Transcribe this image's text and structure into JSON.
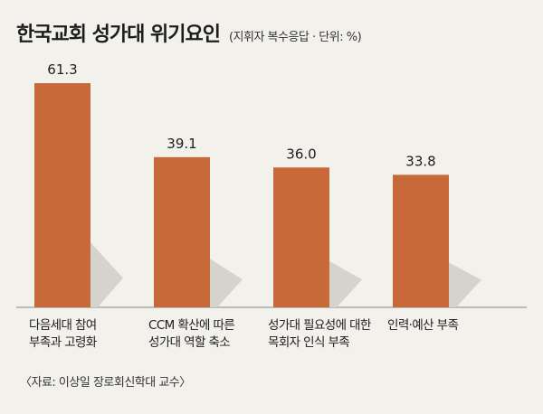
{
  "title": "한국교회 성가대 위기요인",
  "subtitle": "(지휘자 복수응답 · 단위: %)",
  "source": "〈자료: 이상일 장로회신학대 교수〉",
  "colors": {
    "bar": "#c8693a",
    "shadow": "#d6d3cd",
    "axis": "#8a8780"
  },
  "chart_data": {
    "type": "bar",
    "title": "한국교회 성가대 위기요인",
    "subtitle": "(지휘자 복수응답 · 단위: %)",
    "categories": [
      [
        "다음세대 참여",
        "부족과 고령화"
      ],
      [
        "CCM 확산에 따른",
        "성가대 역할 축소"
      ],
      [
        "성가대 필요성에 대한",
        "목회자 인식 부족"
      ],
      [
        "인력·예산 부족"
      ]
    ],
    "values": [
      61.3,
      39.1,
      36.0,
      33.8
    ],
    "value_labels": [
      "61.3",
      "39.1",
      "36.0",
      "33.8"
    ],
    "ylim": [
      0,
      61.3
    ],
    "grid": false,
    "legend": "none"
  }
}
